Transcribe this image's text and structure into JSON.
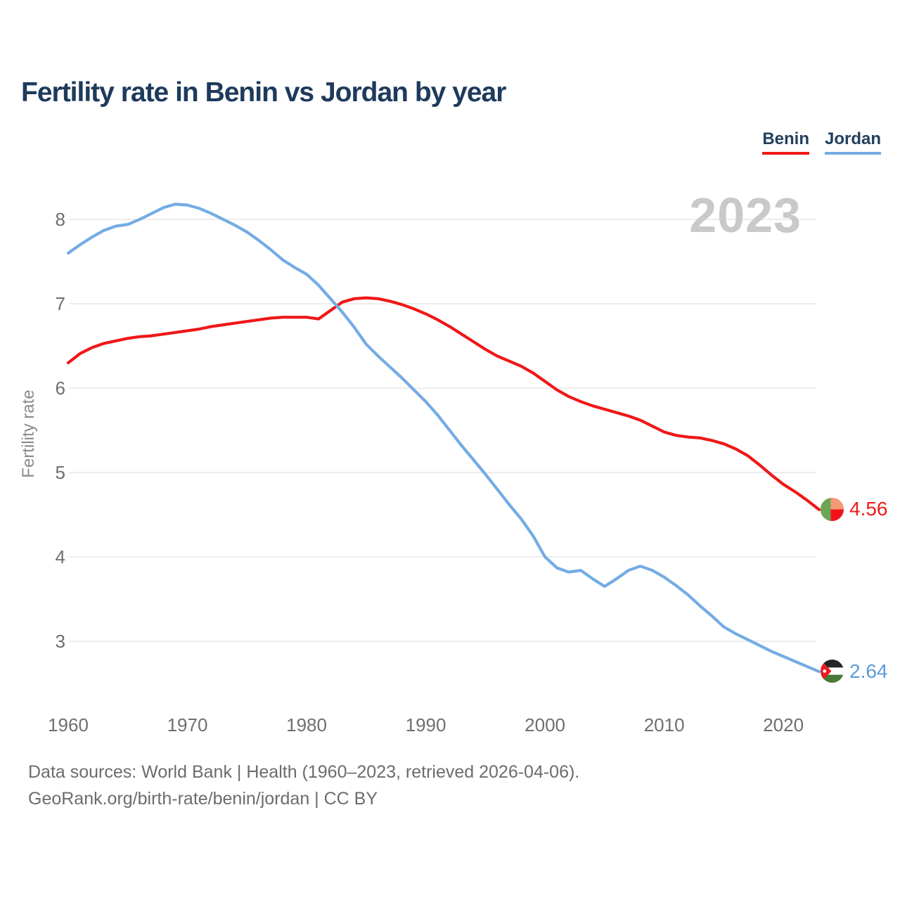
{
  "title": "Fertility rate in Benin vs Jordan by year",
  "watermark": "2023",
  "legend": [
    {
      "label": "Benin",
      "color": "#ef1717"
    },
    {
      "label": "Jordan",
      "color": "#74ace4"
    }
  ],
  "y_axis": {
    "label": "Fertility rate",
    "ticks": [
      8,
      7,
      6,
      5,
      4,
      3
    ]
  },
  "x_axis": {
    "ticks": [
      1960,
      1970,
      1980,
      1990,
      2000,
      2010,
      2020
    ]
  },
  "end_labels": [
    {
      "series": "Benin",
      "value": "4.56",
      "color": "#f01a1a",
      "flag": "benin-flag-icon"
    },
    {
      "series": "Jordan",
      "value": "2.64",
      "color": "#5b9cd9",
      "flag": "jordan-flag-icon"
    }
  ],
  "footer": {
    "line1": "Data sources: World Bank | Health (1960–2023, retrieved 2026-04-06).",
    "line2": "GeoRank.org/birth-rate/benin/jordan | CC BY"
  },
  "chart_data": {
    "type": "line",
    "title": "Fertility rate in Benin vs Jordan by year",
    "xlabel": "",
    "ylabel": "Fertility rate",
    "grid": "horizontal",
    "legend_position": "top-right",
    "xlim": [
      1960,
      2023
    ],
    "ylim": [
      2.5,
      8.4
    ],
    "xticks": [
      1960,
      1970,
      1980,
      1990,
      2000,
      2010,
      2020
    ],
    "yticks": [
      3,
      4,
      5,
      6,
      7,
      8
    ],
    "x": [
      1960,
      1961,
      1962,
      1963,
      1964,
      1965,
      1966,
      1967,
      1968,
      1969,
      1970,
      1971,
      1972,
      1973,
      1974,
      1975,
      1976,
      1977,
      1978,
      1979,
      1980,
      1981,
      1982,
      1983,
      1984,
      1985,
      1986,
      1987,
      1988,
      1989,
      1990,
      1991,
      1992,
      1993,
      1994,
      1995,
      1996,
      1997,
      1998,
      1999,
      2000,
      2001,
      2002,
      2003,
      2004,
      2005,
      2006,
      2007,
      2008,
      2009,
      2010,
      2011,
      2012,
      2013,
      2014,
      2015,
      2016,
      2017,
      2018,
      2019,
      2020,
      2021,
      2022,
      2023
    ],
    "series": [
      {
        "name": "Benin",
        "color": "#ef1717",
        "values": [
          6.3,
          6.41,
          6.48,
          6.53,
          6.56,
          6.59,
          6.61,
          6.62,
          6.64,
          6.66,
          6.68,
          6.7,
          6.73,
          6.75,
          6.77,
          6.79,
          6.81,
          6.83,
          6.84,
          6.84,
          6.84,
          6.82,
          6.92,
          7.02,
          7.06,
          7.07,
          7.06,
          7.03,
          6.99,
          6.94,
          6.88,
          6.81,
          6.73,
          6.64,
          6.55,
          6.46,
          6.38,
          6.32,
          6.26,
          6.18,
          6.08,
          5.98,
          5.9,
          5.84,
          5.79,
          5.75,
          5.71,
          5.67,
          5.62,
          5.55,
          5.48,
          5.44,
          5.42,
          5.41,
          5.38,
          5.34,
          5.28,
          5.2,
          5.09,
          4.97,
          4.86,
          4.77,
          4.67,
          4.56
        ]
      },
      {
        "name": "Jordan",
        "color": "#74ace4",
        "values": [
          7.6,
          7.7,
          7.79,
          7.87,
          7.92,
          7.94,
          8.0,
          8.07,
          8.14,
          8.18,
          8.17,
          8.13,
          8.07,
          8.0,
          7.93,
          7.85,
          7.75,
          7.64,
          7.52,
          7.43,
          7.35,
          7.22,
          7.06,
          6.9,
          6.72,
          6.52,
          6.38,
          6.25,
          6.12,
          5.98,
          5.84,
          5.68,
          5.5,
          5.32,
          5.15,
          4.98,
          4.8,
          4.62,
          4.45,
          4.25,
          4.0,
          3.87,
          3.82,
          3.84,
          3.74,
          3.65,
          3.74,
          3.84,
          3.89,
          3.84,
          3.76,
          3.66,
          3.55,
          3.42,
          3.3,
          3.17,
          3.09,
          3.02,
          2.95,
          2.88,
          2.82,
          2.76,
          2.7,
          2.64
        ]
      }
    ],
    "end_markers": [
      {
        "series": "Benin",
        "year": 2023,
        "value": 4.56
      },
      {
        "series": "Jordan",
        "year": 2023,
        "value": 2.64
      }
    ]
  }
}
